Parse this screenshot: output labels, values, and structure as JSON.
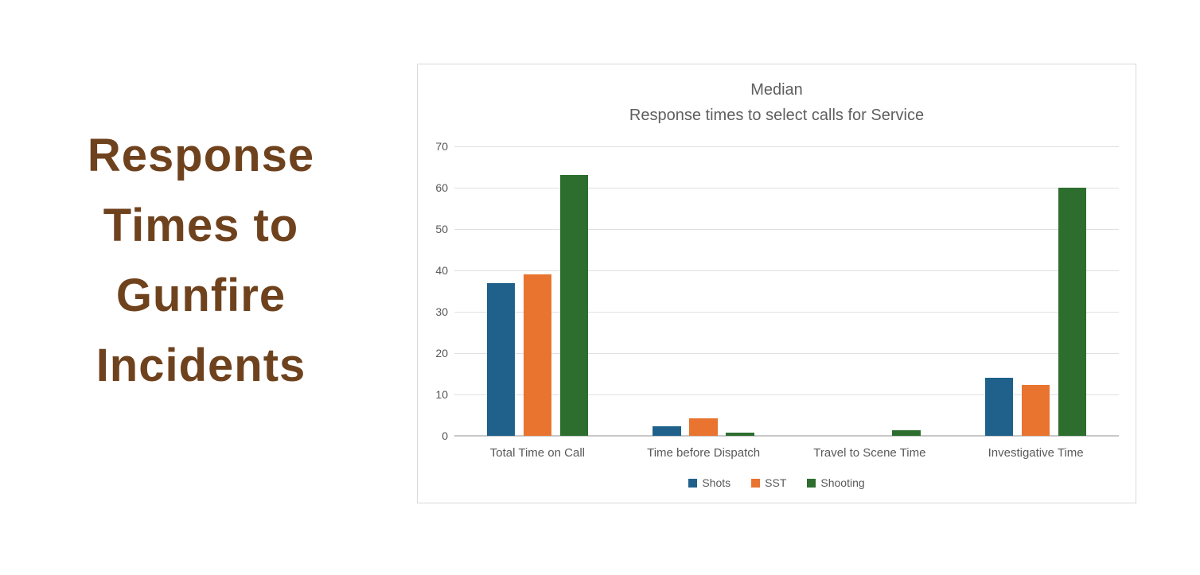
{
  "page": {
    "background": "#ffffff"
  },
  "hero": {
    "title": "Response Times to Gunfire Incidents",
    "lines": [
      "Response",
      "Times to",
      "Gunfire",
      "Incidents"
    ],
    "color": "#6f421e"
  },
  "chart": {
    "text_color": "#595959",
    "title_color": "#5f5f5f",
    "gridline_color": "#e0e0e0",
    "axis_line_color": "#c8c8c8",
    "panel_border_color": "#d9d9d9"
  },
  "chart_data": {
    "type": "bar",
    "title": "Median",
    "subtitle": "Response times to select calls for Service",
    "categories": [
      "Total Time on Call",
      "Time before Dispatch",
      "Travel to Scene Time",
      "Investigative Time"
    ],
    "series": [
      {
        "name": "Shots",
        "color": "#20618b",
        "values": [
          37,
          2.3,
          0,
          14
        ]
      },
      {
        "name": "SST",
        "color": "#e8742f",
        "values": [
          39,
          4.3,
          0,
          12.4
        ]
      },
      {
        "name": "Shooting",
        "color": "#2d6e2f",
        "values": [
          63,
          0.7,
          1.4,
          60
        ]
      }
    ],
    "ylabel": "",
    "xlabel": "",
    "ylim": [
      0,
      70
    ],
    "yticks": [
      0,
      10,
      20,
      30,
      40,
      50,
      60,
      70
    ],
    "grid": true,
    "legend_position": "bottom"
  }
}
